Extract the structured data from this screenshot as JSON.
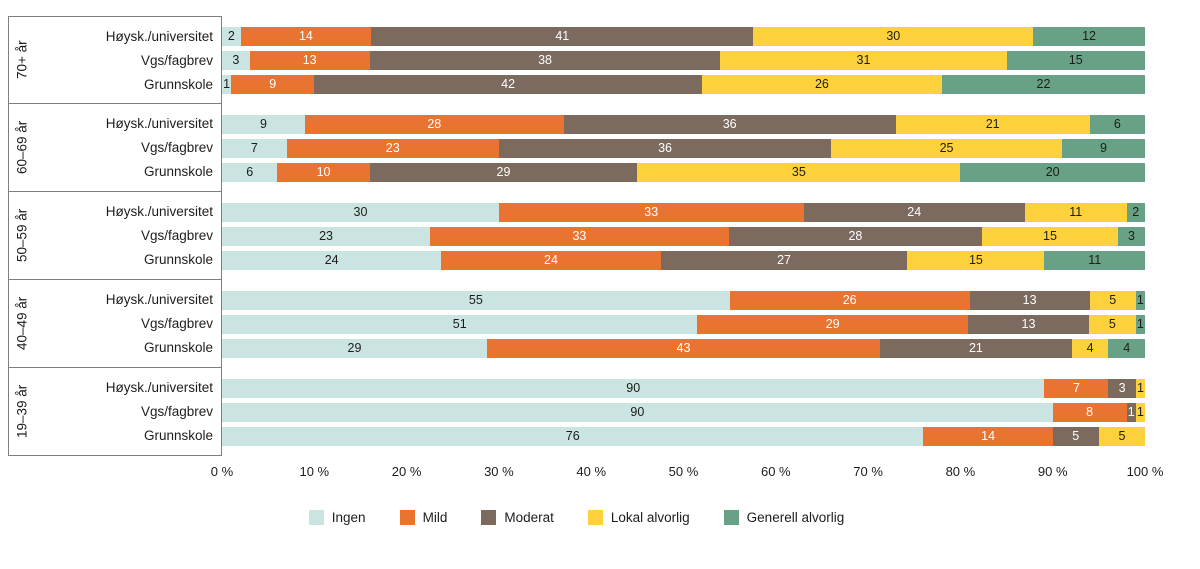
{
  "chart_data": {
    "type": "bar",
    "stacked": true,
    "orientation": "horizontal",
    "unit": "%",
    "xlim": [
      0,
      100
    ],
    "grid": false,
    "legend_position": "bottom",
    "x_ticks": [
      "0 %",
      "10 %",
      "20 %",
      "30 %",
      "40 %",
      "50 %",
      "60 %",
      "70 %",
      "80 %",
      "90 %",
      "100 %"
    ],
    "legend": [
      {
        "label": "Ingen",
        "color": "#c9e4e1",
        "text_color": "#1d1d1b"
      },
      {
        "label": "Mild",
        "color": "#e97331",
        "text_color": "#ffffff"
      },
      {
        "label": "Moderat",
        "color": "#7b6a5d",
        "text_color": "#ffffff"
      },
      {
        "label": "Lokal alvorlig",
        "color": "#fcd13b",
        "text_color": "#1d1d1b"
      },
      {
        "label": "Generell alvorlig",
        "color": "#68a185",
        "text_color": "#1d1d1b"
      }
    ],
    "groups": [
      {
        "group": "70+ år",
        "rows": [
          {
            "label": "Høysk./universitet",
            "values": [
              2,
              14,
              41,
              30,
              12
            ]
          },
          {
            "label": "Vgs/fagbrev",
            "values": [
              3,
              13,
              38,
              31,
              15
            ]
          },
          {
            "label": "Grunnskole",
            "values": [
              1,
              9,
              42,
              26,
              22
            ]
          }
        ]
      },
      {
        "group": "60–69 år",
        "rows": [
          {
            "label": "Høysk./universitet",
            "values": [
              9,
              28,
              36,
              21,
              6
            ]
          },
          {
            "label": "Vgs/fagbrev",
            "values": [
              7,
              23,
              36,
              25,
              9
            ]
          },
          {
            "label": "Grunnskole",
            "values": [
              6,
              10,
              29,
              35,
              20
            ]
          }
        ]
      },
      {
        "group": "50–59 år",
        "rows": [
          {
            "label": "Høysk./universitet",
            "values": [
              30,
              33,
              24,
              11,
              2
            ]
          },
          {
            "label": "Vgs/fagbrev",
            "values": [
              23,
              33,
              28,
              15,
              3
            ]
          },
          {
            "label": "Grunnskole",
            "values": [
              24,
              24,
              27,
              15,
              11
            ]
          }
        ]
      },
      {
        "group": "40–49 år",
        "rows": [
          {
            "label": "Høysk./universitet",
            "values": [
              55,
              26,
              13,
              5,
              1
            ]
          },
          {
            "label": "Vgs/fagbrev",
            "values": [
              51,
              29,
              13,
              5,
              1
            ]
          },
          {
            "label": "Grunnskole",
            "values": [
              29,
              43,
              21,
              4,
              4
            ]
          }
        ]
      },
      {
        "group": "19–39 år",
        "rows": [
          {
            "label": "Høysk./universitet",
            "values": [
              90,
              7,
              3,
              1,
              0
            ]
          },
          {
            "label": "Vgs/fagbrev",
            "values": [
              90,
              8,
              1,
              1,
              0
            ]
          },
          {
            "label": "Grunnskole",
            "values": [
              76,
              14,
              5,
              5,
              0
            ]
          }
        ]
      }
    ]
  }
}
